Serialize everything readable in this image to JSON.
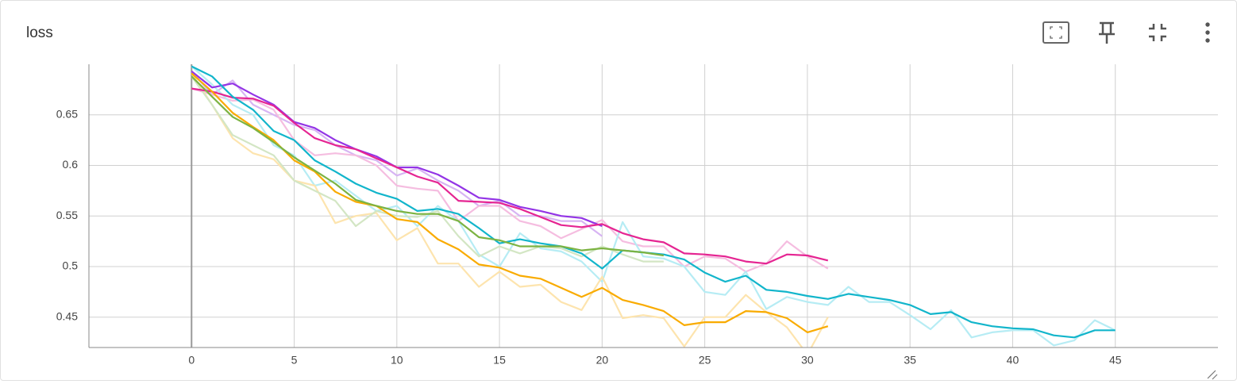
{
  "chart_data": {
    "type": "line",
    "title": "loss",
    "x": [
      0,
      1,
      2,
      3,
      4,
      5,
      6,
      7,
      8,
      9,
      10,
      11,
      12,
      13,
      14,
      15,
      16,
      17,
      18,
      19,
      20,
      21,
      22,
      23,
      24,
      25,
      26,
      27,
      28,
      29,
      30,
      31,
      32,
      33,
      34,
      35,
      36,
      37,
      38,
      39,
      40,
      41,
      42,
      43,
      44,
      45
    ],
    "xlim": [
      -5,
      50
    ],
    "xticks": [
      0,
      5,
      10,
      15,
      20,
      25,
      30,
      35,
      40,
      45
    ],
    "ylim": [
      0.42,
      0.7
    ],
    "yticks": [
      0.45,
      0.5,
      0.55,
      0.6,
      0.65
    ],
    "grid": true,
    "series": [
      {
        "color": "#d7b4f3",
        "values": [
          0.693,
          0.67,
          0.684,
          0.66,
          0.65,
          0.64,
          0.635,
          0.62,
          0.61,
          0.605,
          0.59,
          0.597,
          0.585,
          0.575,
          0.56,
          0.565,
          0.55,
          0.55,
          0.545,
          0.545,
          0.53,
          null,
          null,
          null,
          null,
          null,
          null,
          null,
          null,
          null,
          null,
          null,
          null,
          null,
          null,
          null,
          null,
          null,
          null,
          null,
          null,
          null,
          null,
          null,
          null,
          null
        ]
      },
      {
        "color": "#f5bde0",
        "values": [
          0.676,
          0.67,
          0.664,
          0.665,
          0.655,
          0.625,
          0.61,
          0.612,
          0.61,
          0.6,
          0.58,
          0.577,
          0.575,
          0.545,
          0.56,
          0.56,
          0.545,
          0.54,
          0.528,
          0.537,
          0.546,
          0.525,
          0.52,
          0.52,
          0.5,
          0.51,
          0.508,
          0.495,
          0.503,
          0.525,
          0.51,
          0.498,
          null,
          null,
          null,
          null,
          null,
          null,
          null,
          null,
          null,
          null,
          null,
          null,
          null,
          null
        ]
      },
      {
        "color": "#b6ecf4",
        "values": [
          0.698,
          0.68,
          0.66,
          0.65,
          0.62,
          0.61,
          0.58,
          0.585,
          0.57,
          0.555,
          0.56,
          0.54,
          0.56,
          0.545,
          0.512,
          0.5,
          0.533,
          0.518,
          0.515,
          0.505,
          0.485,
          0.544,
          0.51,
          0.508,
          0.5,
          0.475,
          0.472,
          0.495,
          0.458,
          0.47,
          0.465,
          0.462,
          0.48,
          0.465,
          0.465,
          0.452,
          0.438,
          0.457,
          0.43,
          0.435,
          0.437,
          0.437,
          0.422,
          0.427,
          0.447,
          0.437
        ]
      },
      {
        "color": "#fde4ae",
        "values": [
          0.691,
          0.66,
          0.627,
          0.612,
          0.606,
          0.585,
          0.58,
          0.543,
          0.55,
          0.553,
          0.526,
          0.538,
          0.503,
          0.503,
          0.48,
          0.495,
          0.48,
          0.482,
          0.465,
          0.457,
          0.49,
          0.449,
          0.452,
          0.449,
          0.421,
          0.45,
          0.45,
          0.472,
          0.455,
          0.44,
          0.413,
          0.45,
          null,
          null,
          null,
          null,
          null,
          null,
          null,
          null,
          null,
          null,
          null,
          null,
          null,
          null
        ]
      },
      {
        "color": "#d3e6c4",
        "values": [
          0.688,
          0.66,
          0.63,
          0.62,
          0.61,
          0.585,
          0.575,
          0.565,
          0.54,
          0.555,
          0.55,
          0.549,
          0.555,
          0.53,
          0.51,
          0.52,
          0.513,
          0.52,
          0.518,
          0.51,
          0.52,
          0.512,
          0.505,
          0.505,
          null,
          null,
          null,
          null,
          null,
          null,
          null,
          null,
          null,
          null,
          null,
          null,
          null,
          null,
          null,
          null,
          null,
          null,
          null,
          null,
          null,
          null
        ]
      },
      {
        "color": "#9334e6",
        "values": [
          0.693,
          0.677,
          0.681,
          0.67,
          0.66,
          0.643,
          0.637,
          0.625,
          0.616,
          0.609,
          0.598,
          0.598,
          0.591,
          0.58,
          0.568,
          0.566,
          0.559,
          0.555,
          0.55,
          0.548,
          0.54,
          null,
          null,
          null,
          null,
          null,
          null,
          null,
          null,
          null,
          null,
          null,
          null,
          null,
          null,
          null,
          null,
          null,
          null,
          null,
          null,
          null,
          null,
          null,
          null,
          null
        ]
      },
      {
        "color": "#e52592",
        "values": [
          0.676,
          0.673,
          0.667,
          0.666,
          0.659,
          0.642,
          0.627,
          0.62,
          0.616,
          0.607,
          0.598,
          0.589,
          0.583,
          0.565,
          0.564,
          0.563,
          0.557,
          0.549,
          0.541,
          0.539,
          0.542,
          0.533,
          0.527,
          0.524,
          0.513,
          0.512,
          0.51,
          0.505,
          0.503,
          0.512,
          0.511,
          0.506,
          null,
          null,
          null,
          null,
          null,
          null,
          null,
          null,
          null,
          null,
          null,
          null,
          null,
          null
        ]
      },
      {
        "color": "#12b5cb",
        "values": [
          0.698,
          0.688,
          0.668,
          0.655,
          0.634,
          0.625,
          0.605,
          0.594,
          0.582,
          0.573,
          0.567,
          0.555,
          0.557,
          0.552,
          0.538,
          0.523,
          0.527,
          0.523,
          0.52,
          0.513,
          0.498,
          0.516,
          0.514,
          0.512,
          0.507,
          0.494,
          0.485,
          0.491,
          0.477,
          0.475,
          0.471,
          0.468,
          0.473,
          0.47,
          0.467,
          0.462,
          0.453,
          0.455,
          0.445,
          0.441,
          0.439,
          0.438,
          0.432,
          0.43,
          0.437,
          0.437
        ]
      },
      {
        "color": "#f9ab00",
        "values": [
          0.691,
          0.673,
          0.652,
          0.638,
          0.625,
          0.605,
          0.594,
          0.574,
          0.564,
          0.56,
          0.547,
          0.544,
          0.527,
          0.517,
          0.502,
          0.499,
          0.491,
          0.488,
          0.479,
          0.47,
          0.479,
          0.467,
          0.462,
          0.456,
          0.442,
          0.445,
          0.445,
          0.456,
          0.455,
          0.449,
          0.435,
          0.441,
          null,
          null,
          null,
          null,
          null,
          null,
          null,
          null,
          null,
          null,
          null,
          null,
          null,
          null
        ]
      },
      {
        "color": "#7cb342",
        "values": [
          0.688,
          0.668,
          0.648,
          0.637,
          0.623,
          0.608,
          0.595,
          0.582,
          0.566,
          0.56,
          0.555,
          0.552,
          0.552,
          0.545,
          0.529,
          0.526,
          0.52,
          0.52,
          0.52,
          0.516,
          0.518,
          0.516,
          0.514,
          0.511,
          null,
          null,
          null,
          null,
          null,
          null,
          null,
          null,
          null,
          null,
          null,
          null,
          null,
          null,
          null,
          null,
          null,
          null,
          null,
          null,
          null,
          null
        ]
      }
    ]
  }
}
